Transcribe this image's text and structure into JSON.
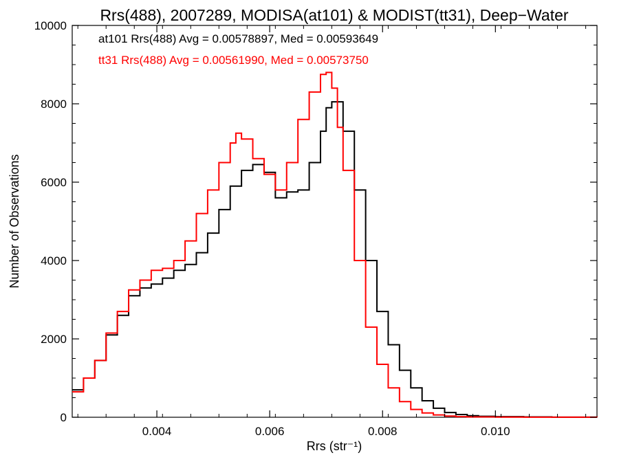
{
  "chart_data": {
    "type": "line",
    "title": "Rrs(488), 2007289, MODISA(at101) & MODIST(tt31), Deep−Water",
    "xlabel": "Rrs (str⁻¹)",
    "ylabel": "Number of Observations",
    "xlim": [
      0.0025,
      0.0118
    ],
    "ylim": [
      0,
      10000
    ],
    "xticks": [
      0.004,
      0.006,
      0.008,
      0.01
    ],
    "xtick_labels": [
      "0.004",
      "0.006",
      "0.008",
      "0.010"
    ],
    "yticks": [
      0,
      2000,
      4000,
      6000,
      8000,
      10000
    ],
    "ytick_labels": [
      "0",
      "2000",
      "4000",
      "6000",
      "8000",
      "10000"
    ],
    "grid": false,
    "series": [
      {
        "name": "at101",
        "color": "#000000",
        "annotation": "at101 Rrs(488) Avg = 0.00578897, Med = 0.00593649",
        "x": [
          0.0025,
          0.0027,
          0.0029,
          0.0031,
          0.0033,
          0.0035,
          0.0037,
          0.0039,
          0.0041,
          0.0043,
          0.0045,
          0.0047,
          0.0049,
          0.0051,
          0.0053,
          0.0055,
          0.0057,
          0.0059,
          0.0061,
          0.0063,
          0.0065,
          0.0067,
          0.0069,
          0.007,
          0.0071,
          0.0073,
          0.0075,
          0.0077,
          0.0079,
          0.0081,
          0.0083,
          0.0085,
          0.0087,
          0.0089,
          0.0091,
          0.0093,
          0.0095,
          0.0097,
          0.01,
          0.0105,
          0.011,
          0.0118
        ],
        "values": [
          700,
          1000,
          1450,
          2100,
          2600,
          3100,
          3300,
          3400,
          3550,
          3750,
          3900,
          4200,
          4700,
          5300,
          5900,
          6300,
          6450,
          6250,
          5600,
          5750,
          5800,
          6500,
          7300,
          7900,
          8050,
          7300,
          5800,
          4000,
          2700,
          1850,
          1200,
          750,
          420,
          230,
          120,
          70,
          40,
          25,
          15,
          8,
          3,
          0
        ]
      },
      {
        "name": "tt31",
        "color": "#ff0000",
        "annotation": "tt31 Rrs(488) Avg = 0.00561990, Med = 0.00573750",
        "x": [
          0.0025,
          0.0027,
          0.0029,
          0.0031,
          0.0033,
          0.0035,
          0.0037,
          0.0039,
          0.0041,
          0.0043,
          0.0045,
          0.0047,
          0.0049,
          0.0051,
          0.0053,
          0.0054,
          0.0055,
          0.0057,
          0.0059,
          0.0061,
          0.0063,
          0.0065,
          0.0067,
          0.0069,
          0.007,
          0.0071,
          0.0072,
          0.0073,
          0.0075,
          0.0077,
          0.0079,
          0.0081,
          0.0083,
          0.0085,
          0.0087,
          0.0089,
          0.0091,
          0.0093,
          0.0095,
          0.01,
          0.0105,
          0.0118
        ],
        "values": [
          650,
          1000,
          1450,
          2150,
          2700,
          3250,
          3500,
          3750,
          3800,
          4000,
          4500,
          5200,
          5800,
          6500,
          7000,
          7250,
          7100,
          6600,
          6200,
          5800,
          6500,
          7600,
          8300,
          8750,
          8800,
          8400,
          7400,
          6300,
          4000,
          2300,
          1350,
          750,
          400,
          200,
          110,
          60,
          30,
          15,
          8,
          4,
          2,
          0
        ]
      }
    ]
  }
}
